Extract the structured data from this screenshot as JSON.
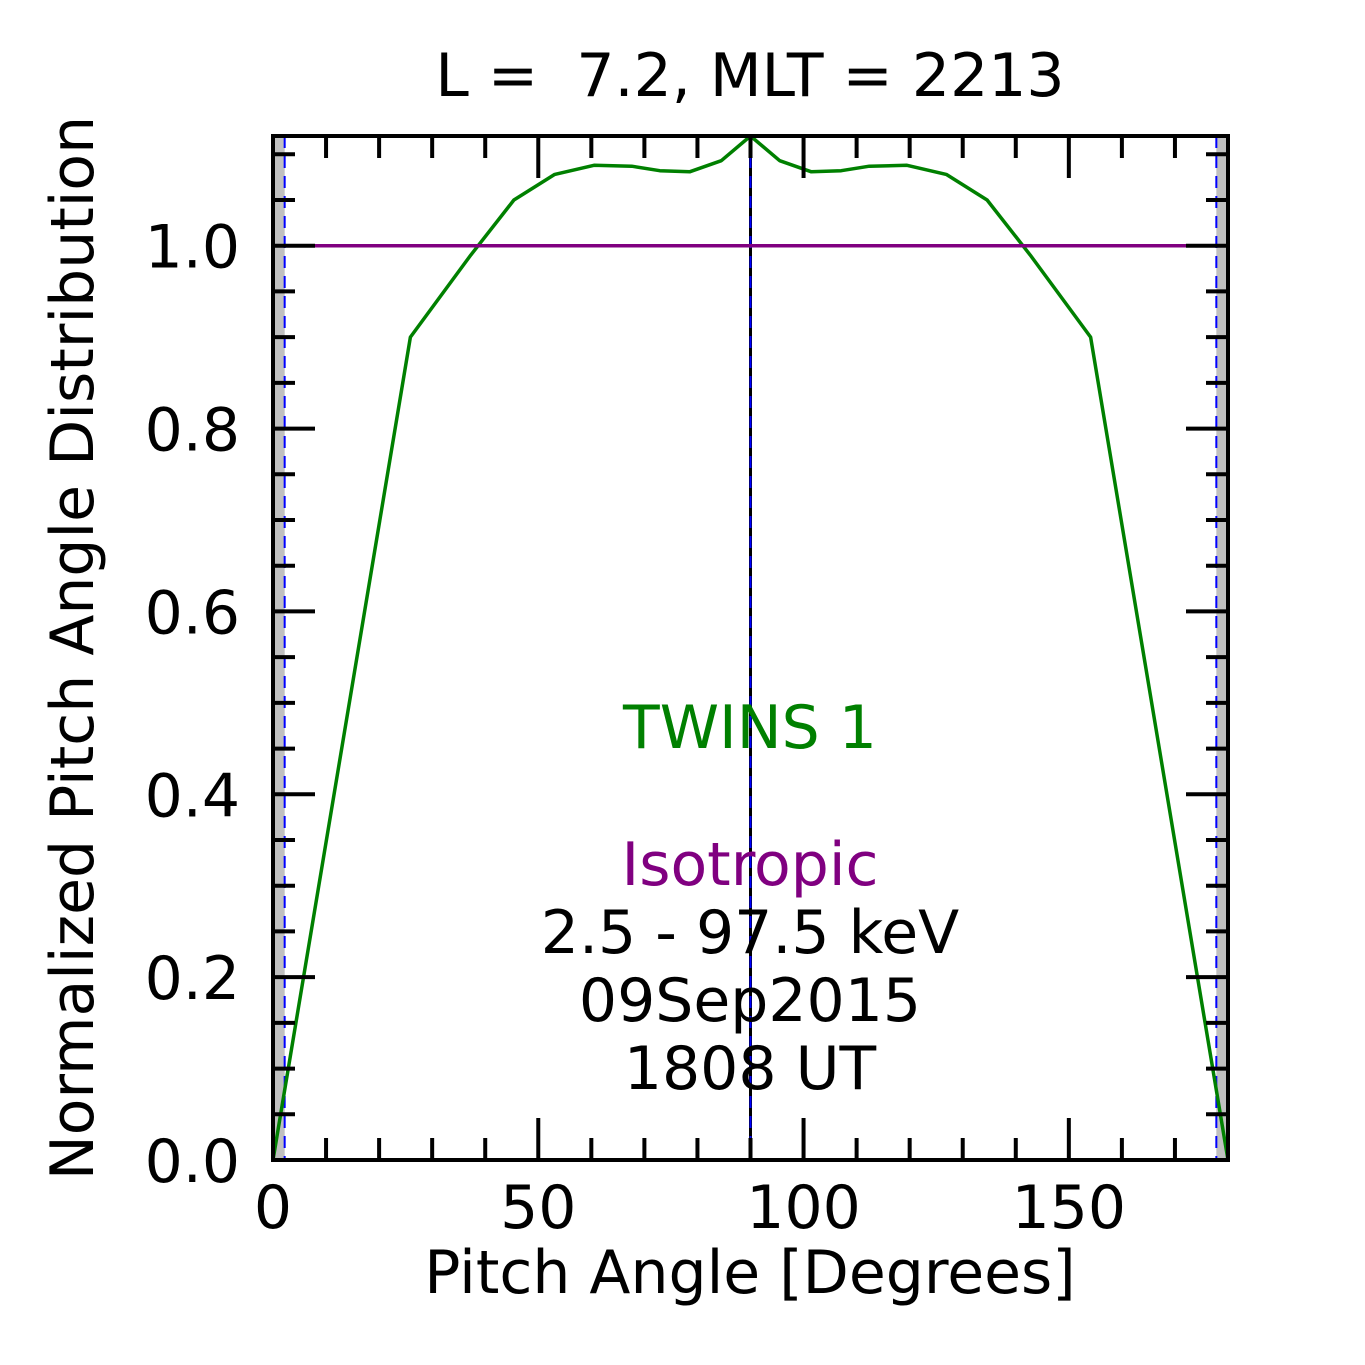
{
  "chart_data": {
    "type": "line",
    "title": "L =  7.2, MLT = 2213",
    "xlabel": "Pitch Angle [Degrees]",
    "ylabel": "Normalized Pitch Angle Distribution",
    "xlim": [
      0,
      180
    ],
    "ylim": [
      0,
      1.12
    ],
    "xticks": [
      0,
      50,
      100,
      150
    ],
    "xtick_labels": [
      "0",
      "50",
      "100",
      "150"
    ],
    "yticks": [
      0,
      0.2,
      0.4,
      0.6,
      0.8,
      1.0
    ],
    "ytick_labels": [
      "0.0",
      "0.2",
      "0.4",
      "0.6",
      "0.8",
      "1.0"
    ],
    "x_minor_step": 10,
    "y_minor_step": 0.05,
    "grid": false,
    "series": [
      {
        "name": "TWINS 1",
        "color": "#008000",
        "x": [
          0,
          25.9,
          37.3,
          45.4,
          53.1,
          60.5,
          67.6,
          72.9,
          78.6,
          84.5,
          90,
          95.5,
          101.4,
          107.1,
          112.4,
          119.5,
          126.9,
          134.6,
          142.7,
          154.1,
          180
        ],
        "y": [
          0.0,
          0.9,
          0.99,
          1.05,
          1.078,
          1.088,
          1.087,
          1.082,
          1.081,
          1.093,
          1.12,
          1.093,
          1.081,
          1.082,
          1.087,
          1.088,
          1.078,
          1.05,
          0.99,
          0.9,
          0.0
        ]
      },
      {
        "name": "Isotropic",
        "color": "#800080",
        "x": [
          7.5,
          172.5
        ],
        "y": [
          1.0,
          1.0
        ]
      }
    ],
    "shaded_regions": [
      {
        "x": [
          0,
          2.2
        ],
        "color": "#c0c0c0"
      },
      {
        "x": [
          177.8,
          180
        ],
        "color": "#c0c0c0"
      }
    ],
    "vertical_lines": [
      {
        "x": 2.2,
        "color": "#0000ff",
        "style": "dashed"
      },
      {
        "x": 177.8,
        "color": "#0000ff",
        "style": "dashed"
      },
      {
        "x": 90,
        "color": "#000000",
        "style": "solid"
      },
      {
        "x": 90,
        "color": "#0000ff",
        "style": "dashed"
      }
    ],
    "annotations": {
      "twins_label": "TWINS 1",
      "isotropic_label": "Isotropic",
      "energy_range": "2.5 - 97.5 keV",
      "date": "09Sep2015",
      "time": "1808 UT"
    }
  }
}
